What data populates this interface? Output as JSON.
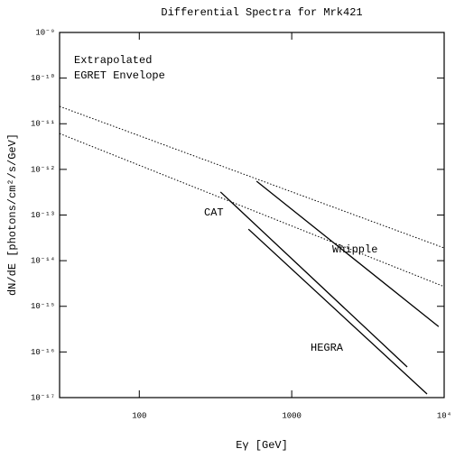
{
  "chart_data": {
    "type": "line",
    "title": "Differential Spectra for Mrk421",
    "xlabel": "Eγ [GeV]",
    "ylabel": "dN/dE [photons/cm²/s/GeV]",
    "xscale": "log",
    "yscale": "log",
    "xlim": [
      30,
      10000
    ],
    "ylim": [
      1e-17,
      1e-09
    ],
    "xticks": [
      100,
      1000,
      {
        "value": 10000,
        "label": "10⁴"
      }
    ],
    "yticks": [
      {
        "value": 1e-09,
        "label": "10⁻⁹"
      },
      {
        "value": 1e-10,
        "label": "10⁻¹⁰"
      },
      {
        "value": 1e-11,
        "label": "10⁻¹¹"
      },
      {
        "value": 1e-12,
        "label": "10⁻¹²"
      },
      {
        "value": 1e-13,
        "label": "10⁻¹³"
      },
      {
        "value": 1e-14,
        "label": "10⁻¹⁴"
      },
      {
        "value": 1e-15,
        "label": "10⁻¹⁵"
      },
      {
        "value": 1e-16,
        "label": "10⁻¹⁶"
      },
      {
        "value": 1e-17,
        "label": "10⁻¹⁷"
      }
    ],
    "annotations": [
      "Extrapolated",
      "EGRET Envelope"
    ],
    "series": [
      {
        "color": "#000000",
        "dash": true,
        "x": [
          30,
          10000
        ],
        "values": [
          2.4e-11,
          1.9e-14
        ]
      },
      {
        "color": "#000000",
        "dash": true,
        "x": [
          30,
          10000
        ],
        "values": [
          6.1e-12,
          2.7e-15
        ]
      },
      {
        "name": "CAT",
        "color": "#000000",
        "dash": false,
        "x": [
          341,
          5720
        ],
        "values": [
          3.2e-13,
          4.7e-17
        ]
      },
      {
        "name": "HEGRA",
        "color": "#000000",
        "dash": false,
        "x": [
          520,
          7720
        ],
        "values": [
          4.9e-14,
          1.2e-17
        ]
      },
      {
        "name": "Whipple",
        "color": "#000000",
        "dash": false,
        "x": [
          588,
          9200
        ],
        "values": [
          5.5e-13,
          3.6e-16
        ]
      }
    ]
  }
}
